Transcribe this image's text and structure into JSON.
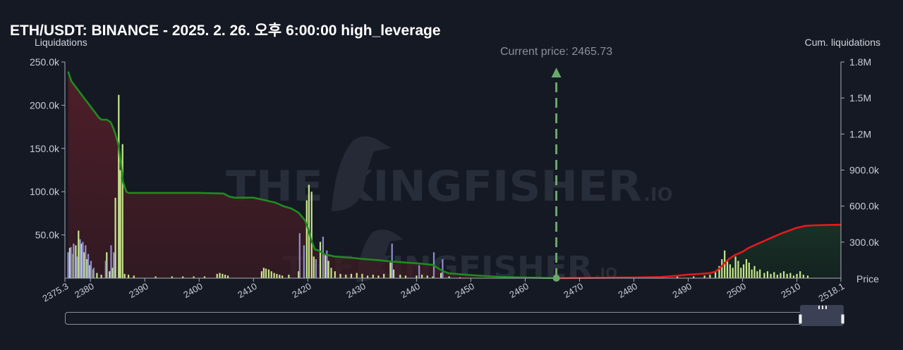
{
  "title": "ETH/USDT: BINANCE - 2025. 2. 26. 오후 6:00:00 high_leverage",
  "chart_data": {
    "type": "bar",
    "title": "ETH/USDT: BINANCE - 2025. 2. 26. 오후 6:00:00 high_leverage",
    "ylabel_left": "Liquidations",
    "ylabel_right": "Cum. liquidations",
    "xlabel": "Price",
    "xlim": [
      2375.3,
      2518.1
    ],
    "xticks": [
      "2375.3",
      "2380",
      "2390",
      "2400",
      "2410",
      "2420",
      "2430",
      "2440",
      "2450",
      "2460",
      "2470",
      "2480",
      "2490",
      "2500",
      "2510",
      "2518.1"
    ],
    "ylim_left": [
      0,
      250000
    ],
    "yticks_left": [
      "50.0k",
      "100.0k",
      "150.0k",
      "200.0k",
      "250.0k"
    ],
    "ylim_right": [
      0,
      1800000
    ],
    "yticks_right": [
      "300.0k",
      "600.0k",
      "900.0k",
      "1.2M",
      "1.5M",
      "1.8M"
    ],
    "current_price": 2465.73,
    "current_price_label": "Current price: 2465.73",
    "series": [
      {
        "name": "long liquidations",
        "color": "#c8e68c",
        "points": [
          [
            2376.2,
            35000
          ],
          [
            2376.8,
            28000
          ],
          [
            2377.3,
            38000
          ],
          [
            2377.8,
            55000
          ],
          [
            2378.3,
            40000
          ],
          [
            2378.8,
            30000
          ],
          [
            2379.3,
            22000
          ],
          [
            2379.8,
            15000
          ],
          [
            2380.5,
            10000
          ],
          [
            2381.2,
            6000
          ],
          [
            2382,
            4000
          ],
          [
            2383,
            30000
          ],
          [
            2383.5,
            8000
          ],
          [
            2384.1,
            12000
          ],
          [
            2384.6,
            93000
          ],
          [
            2385.2,
            212000
          ],
          [
            2385.5,
            125000
          ],
          [
            2385.9,
            155000
          ],
          [
            2386.3,
            5000
          ],
          [
            2387,
            4000
          ],
          [
            2388,
            3000
          ],
          [
            2392,
            2000
          ],
          [
            2395,
            2000
          ],
          [
            2397,
            2000
          ],
          [
            2399,
            2000
          ],
          [
            2401,
            2000
          ],
          [
            2403.3,
            5000
          ],
          [
            2403.8,
            6000
          ],
          [
            2404.3,
            5000
          ],
          [
            2404.8,
            4000
          ],
          [
            2405.3,
            3000
          ],
          [
            2411.5,
            8000
          ],
          [
            2411.9,
            12000
          ],
          [
            2412.3,
            11000
          ],
          [
            2412.8,
            10000
          ],
          [
            2413.3,
            8000
          ],
          [
            2413.8,
            6000
          ],
          [
            2414.3,
            5000
          ],
          [
            2414.8,
            4000
          ],
          [
            2415.3,
            3000
          ],
          [
            2416.5,
            4000
          ],
          [
            2418.3,
            8000
          ],
          [
            2419.8,
            90000
          ],
          [
            2420.2,
            108000
          ],
          [
            2420.7,
            100000
          ],
          [
            2421.1,
            25000
          ],
          [
            2422.3,
            42000
          ],
          [
            2423.2,
            28000
          ],
          [
            2423.8,
            20000
          ],
          [
            2424.3,
            12000
          ],
          [
            2425,
            8000
          ],
          [
            2426,
            5000
          ],
          [
            2427,
            4000
          ],
          [
            2428,
            5000
          ],
          [
            2429,
            6000
          ],
          [
            2430,
            5000
          ],
          [
            2431,
            3000
          ],
          [
            2432,
            4000
          ],
          [
            2433,
            3000
          ],
          [
            2434,
            5000
          ],
          [
            2435.2,
            18000
          ],
          [
            2435.8,
            10000
          ],
          [
            2437,
            4000
          ],
          [
            2438,
            3000
          ],
          [
            2440,
            3000
          ],
          [
            2441,
            4000
          ],
          [
            2442,
            3000
          ],
          [
            2443,
            2000
          ],
          [
            2444.5,
            6000
          ],
          [
            2446,
            2000
          ],
          [
            2448,
            1000
          ],
          [
            2488,
            3000
          ],
          [
            2491,
            2000
          ],
          [
            2493,
            3000
          ],
          [
            2494,
            4000
          ],
          [
            2495,
            8000
          ],
          [
            2495.7,
            14000
          ],
          [
            2496.2,
            22000
          ],
          [
            2496.7,
            32000
          ],
          [
            2497.2,
            20000
          ],
          [
            2497.7,
            16000
          ],
          [
            2498.2,
            12000
          ],
          [
            2498.7,
            25000
          ],
          [
            2499.2,
            20000
          ],
          [
            2499.7,
            12000
          ],
          [
            2500.2,
            16000
          ],
          [
            2500.7,
            22000
          ],
          [
            2501.2,
            18000
          ],
          [
            2501.7,
            10000
          ],
          [
            2502.2,
            14000
          ],
          [
            2502.7,
            8000
          ],
          [
            2503.2,
            10000
          ],
          [
            2504,
            6000
          ],
          [
            2504.6,
            8000
          ],
          [
            2505.2,
            5000
          ],
          [
            2505.8,
            7000
          ],
          [
            2506.4,
            4000
          ],
          [
            2507,
            6000
          ],
          [
            2507.6,
            8000
          ],
          [
            2508.2,
            5000
          ],
          [
            2508.8,
            6000
          ],
          [
            2509.4,
            3000
          ],
          [
            2510,
            5000
          ],
          [
            2510.6,
            8000
          ],
          [
            2511.2,
            4000
          ],
          [
            2512,
            3000
          ]
        ]
      },
      {
        "name": "short liquidations",
        "color": "#8f8fcc",
        "points": [
          [
            2375.9,
            30000
          ],
          [
            2376.4,
            36000
          ],
          [
            2376.9,
            40000
          ],
          [
            2377.5,
            25000
          ],
          [
            2378.1,
            45000
          ],
          [
            2378.6,
            42000
          ],
          [
            2379.1,
            38000
          ],
          [
            2379.6,
            28000
          ],
          [
            2380.1,
            20000
          ],
          [
            2380.6,
            12000
          ],
          [
            2382.8,
            20000
          ],
          [
            2383.8,
            38000
          ],
          [
            2384.3,
            30000
          ],
          [
            2418.5,
            52000
          ],
          [
            2419.3,
            38000
          ],
          [
            2421.5,
            22000
          ],
          [
            2422.8,
            48000
          ],
          [
            2423.5,
            32000
          ],
          [
            2435.5,
            40000
          ],
          [
            2440.5,
            15000
          ],
          [
            2443.2,
            30000
          ],
          [
            2444.8,
            22000
          ]
        ]
      },
      {
        "name": "cumulative long",
        "color": "#1e8c1e",
        "points": [
          [
            2375.9,
            1720000
          ],
          [
            2376.5,
            1640000
          ],
          [
            2377.5,
            1580000
          ],
          [
            2378.5,
            1520000
          ],
          [
            2379.5,
            1460000
          ],
          [
            2380.5,
            1400000
          ],
          [
            2381.5,
            1340000
          ],
          [
            2382,
            1320000
          ],
          [
            2383,
            1320000
          ],
          [
            2383.7,
            1300000
          ],
          [
            2384.2,
            1250000
          ],
          [
            2384.6,
            1200000
          ],
          [
            2385.2,
            1100000
          ],
          [
            2385.6,
            960000
          ],
          [
            2386,
            800000
          ],
          [
            2386.6,
            720000
          ],
          [
            2387,
            710000
          ],
          [
            2390,
            710000
          ],
          [
            2400,
            710000
          ],
          [
            2404.5,
            705000
          ],
          [
            2405.5,
            680000
          ],
          [
            2406.5,
            670000
          ],
          [
            2410,
            670000
          ],
          [
            2412,
            650000
          ],
          [
            2414,
            630000
          ],
          [
            2415.5,
            600000
          ],
          [
            2417,
            580000
          ],
          [
            2418.3,
            545000
          ],
          [
            2419.5,
            480000
          ],
          [
            2420,
            420000
          ],
          [
            2420.6,
            320000
          ],
          [
            2421.3,
            240000
          ],
          [
            2422,
            230000
          ],
          [
            2423,
            200000
          ],
          [
            2425,
            180000
          ],
          [
            2428,
            170000
          ],
          [
            2430,
            160000
          ],
          [
            2433,
            150000
          ],
          [
            2435,
            140000
          ],
          [
            2438,
            130000
          ],
          [
            2441,
            120000
          ],
          [
            2443,
            110000
          ],
          [
            2444.8,
            60000
          ],
          [
            2446,
            40000
          ],
          [
            2450,
            25000
          ],
          [
            2455,
            12000
          ],
          [
            2460,
            5000
          ],
          [
            2465.73,
            0
          ]
        ]
      },
      {
        "name": "cumulative short",
        "color": "#e11b1b",
        "points": [
          [
            2465.73,
            0
          ],
          [
            2470,
            2000
          ],
          [
            2480,
            6000
          ],
          [
            2485,
            10000
          ],
          [
            2488,
            20000
          ],
          [
            2490,
            30000
          ],
          [
            2492,
            35000
          ],
          [
            2494,
            42000
          ],
          [
            2495,
            55000
          ],
          [
            2495.6,
            75000
          ],
          [
            2496.2,
            100000
          ],
          [
            2496.8,
            130000
          ],
          [
            2497.5,
            160000
          ],
          [
            2498.5,
            190000
          ],
          [
            2500,
            220000
          ],
          [
            2501,
            250000
          ],
          [
            2502.5,
            280000
          ],
          [
            2504,
            310000
          ],
          [
            2505.5,
            340000
          ],
          [
            2507,
            370000
          ],
          [
            2508.5,
            395000
          ],
          [
            2510,
            420000
          ],
          [
            2511.5,
            435000
          ],
          [
            2513,
            440000
          ],
          [
            2515,
            442000
          ],
          [
            2518.1,
            445000
          ]
        ]
      }
    ]
  }
}
